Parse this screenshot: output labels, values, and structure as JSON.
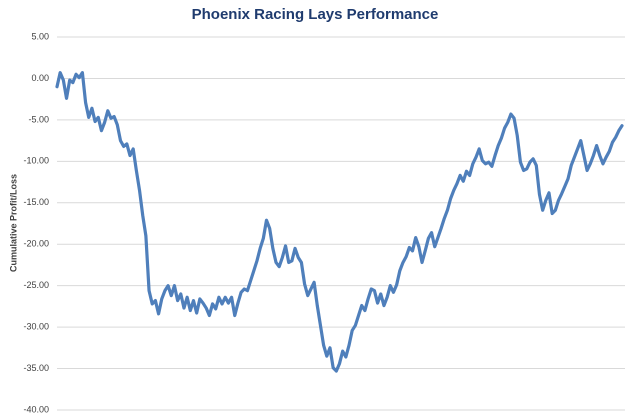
{
  "chart_data": {
    "type": "line",
    "title": "Phoenix Racing Lays Performance",
    "y_label": "Cumulative Profit/Loss",
    "ylim": [
      -40,
      5
    ],
    "yticks": [
      {
        "value": 5,
        "label": "5.00"
      },
      {
        "value": 0,
        "label": "0.00"
      },
      {
        "value": -5,
        "label": "-5.00"
      },
      {
        "value": -10,
        "label": "-10.00"
      },
      {
        "value": -15,
        "label": "-15.00"
      },
      {
        "value": -20,
        "label": "-20.00"
      },
      {
        "value": -25,
        "label": "-25.00"
      },
      {
        "value": -30,
        "label": "-30.00"
      },
      {
        "value": -35,
        "label": "-35.00"
      },
      {
        "value": -40,
        "label": "-40.00"
      }
    ],
    "grid": true,
    "color": "#4f7fbb",
    "values": [
      -1.0,
      0.7,
      -0.2,
      -2.4,
      -0.2,
      -0.5,
      0.5,
      0.1,
      0.7,
      -2.9,
      -4.7,
      -3.6,
      -5.2,
      -4.7,
      -6.3,
      -5.3,
      -3.9,
      -4.8,
      -4.6,
      -5.6,
      -7.5,
      -8.2,
      -7.9,
      -9.3,
      -8.5,
      -11.1,
      -13.5,
      -16.5,
      -19.0,
      -25.6,
      -27.2,
      -26.8,
      -28.4,
      -26.6,
      -25.6,
      -25.0,
      -26.2,
      -25.0,
      -26.8,
      -26.0,
      -27.7,
      -26.4,
      -28.0,
      -26.8,
      -28.3,
      -26.6,
      -27.1,
      -27.7,
      -28.6,
      -27.2,
      -27.8,
      -26.4,
      -27.2,
      -26.4,
      -27.1,
      -26.4,
      -28.6,
      -27.1,
      -25.8,
      -25.4,
      -25.6,
      -24.4,
      -23.2,
      -22.0,
      -20.5,
      -19.3,
      -17.1,
      -18.1,
      -20.5,
      -22.2,
      -22.7,
      -21.6,
      -20.2,
      -22.2,
      -22.0,
      -20.5,
      -21.6,
      -22.2,
      -24.8,
      -26.2,
      -25.4,
      -24.6,
      -27.4,
      -29.8,
      -32.2,
      -33.5,
      -32.5,
      -34.9,
      -35.3,
      -34.4,
      -32.9,
      -33.6,
      -32.2,
      -30.4,
      -29.8,
      -28.6,
      -27.4,
      -28.0,
      -26.6,
      -25.4,
      -25.6,
      -27.1,
      -26.0,
      -27.4,
      -26.4,
      -25.0,
      -25.8,
      -24.9,
      -23.2,
      -22.2,
      -21.5,
      -20.4,
      -20.8,
      -19.2,
      -20.3,
      -22.2,
      -20.8,
      -19.3,
      -18.6,
      -20.3,
      -19.2,
      -18.1,
      -16.9,
      -15.9,
      -14.5,
      -13.5,
      -12.7,
      -11.7,
      -12.4,
      -11.2,
      -11.7,
      -10.3,
      -9.5,
      -8.5,
      -9.9,
      -10.3,
      -10.1,
      -10.6,
      -9.3,
      -8.1,
      -7.2,
      -6.0,
      -5.3,
      -4.3,
      -4.8,
      -6.9,
      -10.1,
      -11.1,
      -10.9,
      -10.1,
      -9.7,
      -10.5,
      -14.0,
      -15.9,
      -14.7,
      -13.8,
      -16.3,
      -15.9,
      -14.7,
      -13.9,
      -13.0,
      -12.1,
      -10.5,
      -9.5,
      -8.5,
      -7.5,
      -9.3,
      -11.1,
      -10.3,
      -9.3,
      -8.1,
      -9.3,
      -10.3,
      -9.5,
      -8.8,
      -7.7,
      -7.1,
      -6.3,
      -5.7
    ]
  }
}
